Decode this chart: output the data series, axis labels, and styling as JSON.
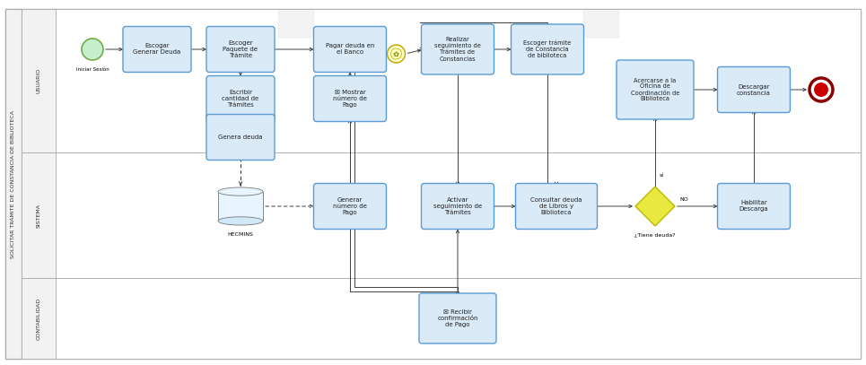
{
  "pool_label": "SOLICITAR TRÁMITE DE CONSTANCIA DE BIBLIOTECA",
  "lane_names": [
    "USUARIO",
    "SISTEMA",
    "CONTABILIDAD"
  ],
  "bg_color": "#ffffff",
  "box_fill": "#daeaf7",
  "box_edge": "#5b9bd5",
  "box_fill2": "#daeaf7",
  "arrow_color": "#404040",
  "lane_bg": "#ffffff",
  "lane_label_bg": "#f2f2f2",
  "pool_label_bg": "#f2f2f2",
  "grid_color": "#aaaaaa",
  "font_color": "#222222",
  "diam_fill": "#e8e840",
  "diam_edge": "#b8b800",
  "db_fill": "#e8f4ff",
  "db_edge": "#888888",
  "start_fill": "#c6efce",
  "start_edge": "#70ad47",
  "end_fill": "#cc0000",
  "end_edge": "#880000",
  "gear_fill": "#ffffc0",
  "gear_edge": "#c0a000"
}
